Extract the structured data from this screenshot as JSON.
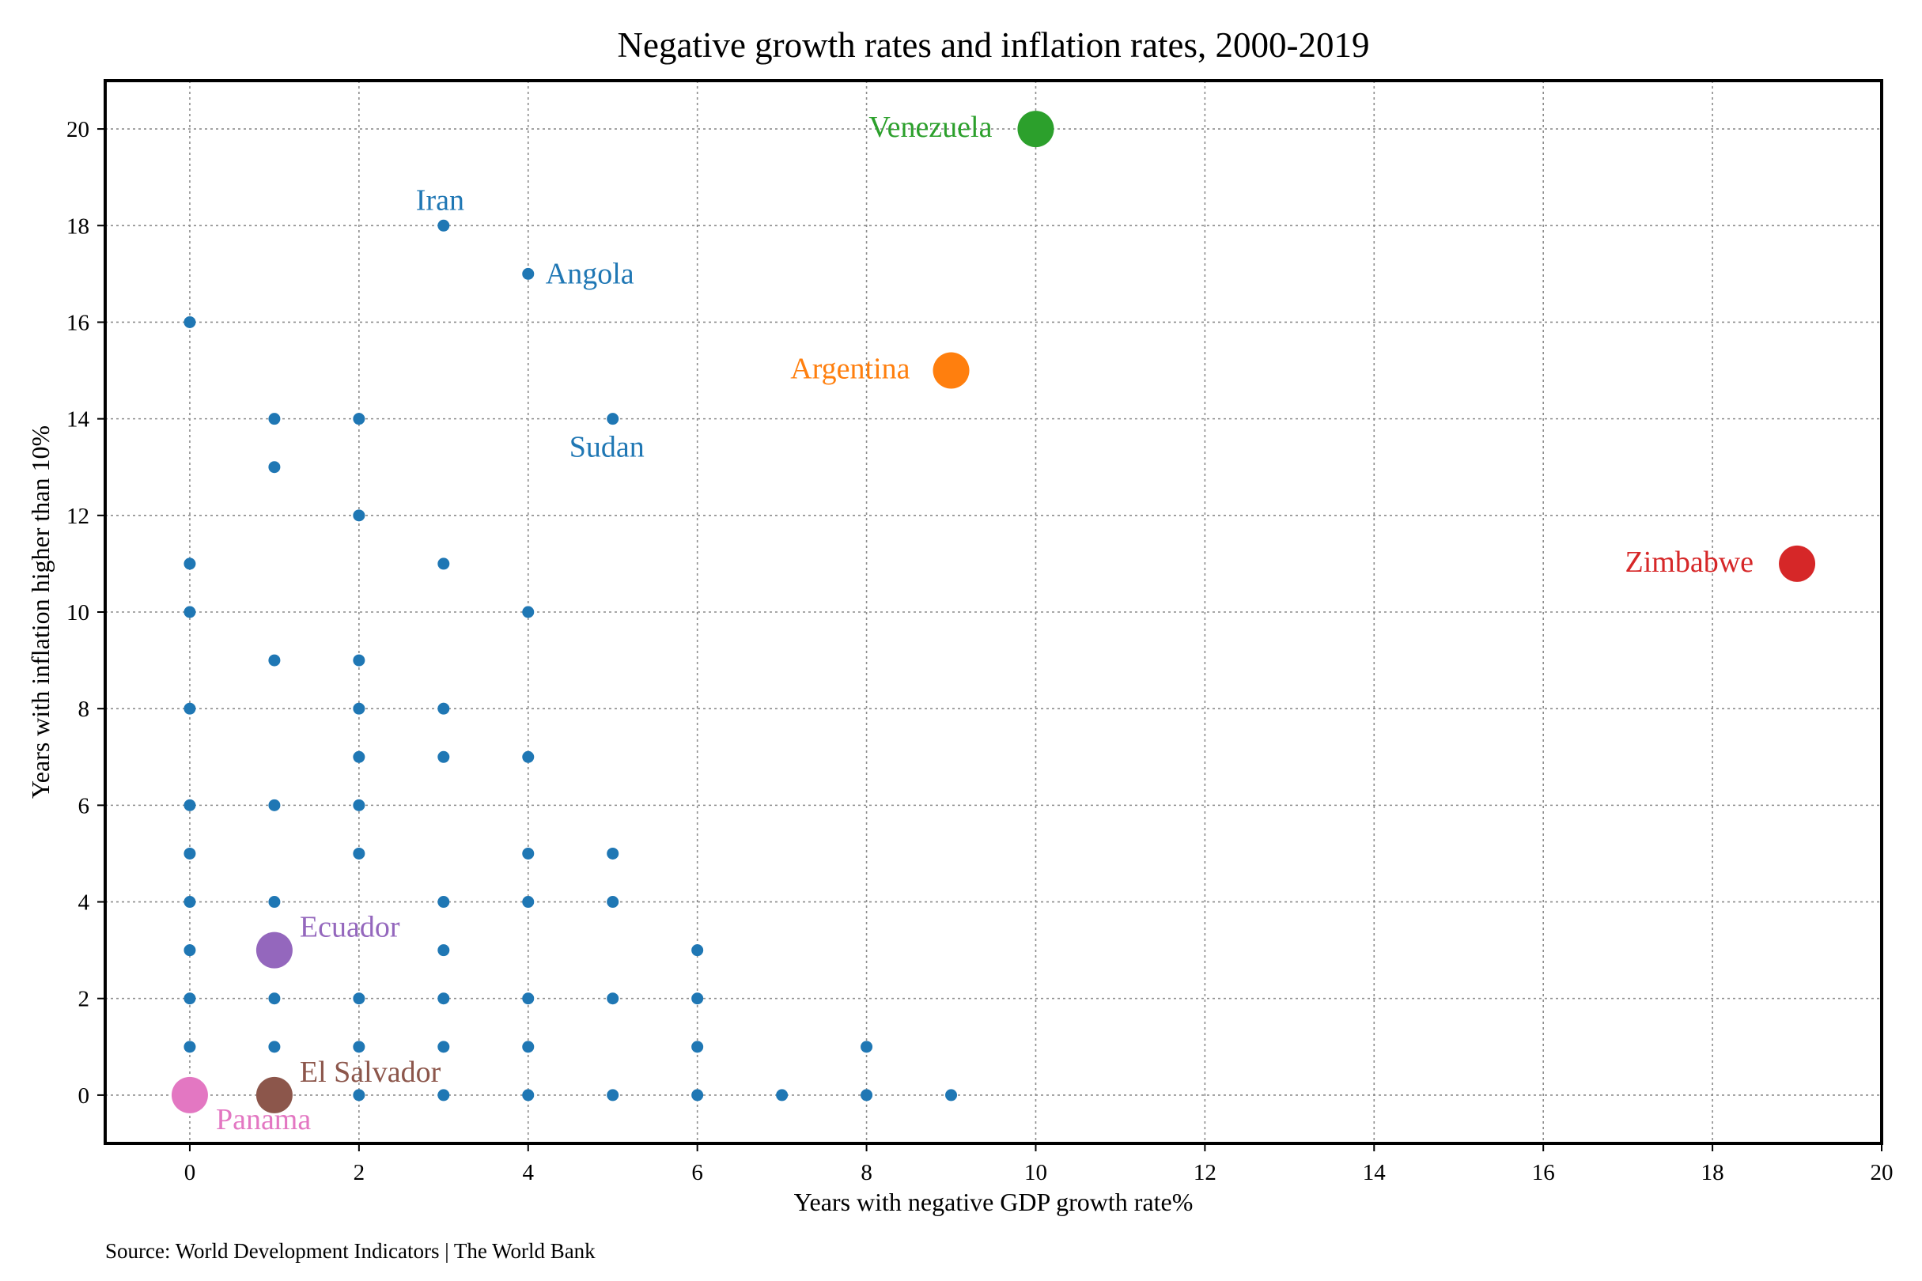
{
  "chart_data": {
    "type": "scatter",
    "title": "Negative growth rates and inflation rates, 2000-2019",
    "xlabel": "Years with negative GDP growth rate%",
    "ylabel": "Years with inflation higher than 10%",
    "source": "Source: World Development Indicators | The World Bank",
    "xlim": [
      -1,
      20
    ],
    "ylim": [
      -1,
      21
    ],
    "xticks": [
      0,
      2,
      4,
      6,
      8,
      10,
      12,
      14,
      16,
      18,
      20
    ],
    "yticks": [
      0,
      2,
      4,
      6,
      8,
      10,
      12,
      14,
      16,
      18,
      20
    ],
    "grid": true,
    "base_color": "#1f77b4",
    "points": [
      [
        0,
        16
      ],
      [
        0,
        11
      ],
      [
        0,
        10
      ],
      [
        0,
        8
      ],
      [
        0,
        6
      ],
      [
        0,
        5
      ],
      [
        0,
        4
      ],
      [
        0,
        3
      ],
      [
        0,
        2
      ],
      [
        0,
        1
      ],
      [
        1,
        14
      ],
      [
        1,
        13
      ],
      [
        1,
        9
      ],
      [
        1,
        6
      ],
      [
        1,
        4
      ],
      [
        1,
        2
      ],
      [
        1,
        1
      ],
      [
        2,
        14
      ],
      [
        2,
        12
      ],
      [
        2,
        9
      ],
      [
        2,
        8
      ],
      [
        2,
        7
      ],
      [
        2,
        6
      ],
      [
        2,
        5
      ],
      [
        2,
        2
      ],
      [
        2,
        1
      ],
      [
        2,
        0
      ],
      [
        3,
        18
      ],
      [
        3,
        11
      ],
      [
        3,
        8
      ],
      [
        3,
        7
      ],
      [
        3,
        4
      ],
      [
        3,
        3
      ],
      [
        3,
        2
      ],
      [
        3,
        1
      ],
      [
        3,
        0
      ],
      [
        4,
        17
      ],
      [
        4,
        10
      ],
      [
        4,
        7
      ],
      [
        4,
        5
      ],
      [
        4,
        4
      ],
      [
        4,
        2
      ],
      [
        4,
        1
      ],
      [
        4,
        0
      ],
      [
        5,
        14
      ],
      [
        5,
        5
      ],
      [
        5,
        4
      ],
      [
        5,
        2
      ],
      [
        5,
        0
      ],
      [
        6,
        3
      ],
      [
        6,
        2
      ],
      [
        6,
        1
      ],
      [
        6,
        0
      ],
      [
        7,
        0
      ],
      [
        8,
        1
      ],
      [
        8,
        0
      ],
      [
        9,
        0
      ]
    ],
    "labeled_small": [
      {
        "name": "Iran",
        "x": 3,
        "y": 18
      },
      {
        "name": "Angola",
        "x": 4,
        "y": 17
      },
      {
        "name": "Sudan",
        "x": 5,
        "y": 14
      }
    ],
    "highlighted": [
      {
        "name": "Venezuela",
        "x": 10,
        "y": 20,
        "color": "#2ca02c"
      },
      {
        "name": "Argentina",
        "x": 9,
        "y": 15,
        "color": "#ff7f0e"
      },
      {
        "name": "Zimbabwe",
        "x": 19,
        "y": 11,
        "color": "#d62728"
      },
      {
        "name": "Ecuador",
        "x": 1,
        "y": 3,
        "color": "#9467bd"
      },
      {
        "name": "El Salvador",
        "x": 1,
        "y": 0,
        "color": "#8c564b"
      },
      {
        "name": "Panama",
        "x": 0,
        "y": 0,
        "color": "#e377c2"
      }
    ]
  }
}
